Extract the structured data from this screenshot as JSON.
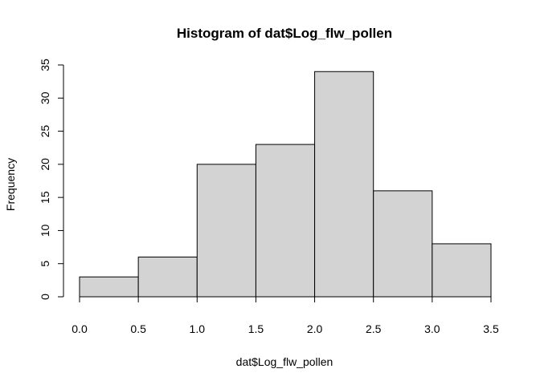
{
  "chart_data": {
    "type": "bar",
    "title": "Histogram of dat$Log_flw_pollen",
    "xlabel": "dat$Log_flw_pollen",
    "ylabel": "Frequency",
    "bins": [
      {
        "start": 0.0,
        "end": 0.5,
        "count": 3
      },
      {
        "start": 0.5,
        "end": 1.0,
        "count": 6
      },
      {
        "start": 1.0,
        "end": 1.5,
        "count": 20
      },
      {
        "start": 1.5,
        "end": 2.0,
        "count": 23
      },
      {
        "start": 2.0,
        "end": 2.5,
        "count": 34
      },
      {
        "start": 2.5,
        "end": 3.0,
        "count": 16
      },
      {
        "start": 3.0,
        "end": 3.5,
        "count": 8
      }
    ],
    "xlim": [
      0.0,
      3.5
    ],
    "ylim": [
      0,
      35
    ],
    "x_ticks": [
      "0.0",
      "0.5",
      "1.0",
      "1.5",
      "2.0",
      "2.5",
      "3.0",
      "3.5"
    ],
    "y_ticks": [
      "0",
      "5",
      "10",
      "15",
      "20",
      "25",
      "30",
      "35"
    ],
    "grid": false,
    "bar_fill": "#d3d3d3"
  }
}
